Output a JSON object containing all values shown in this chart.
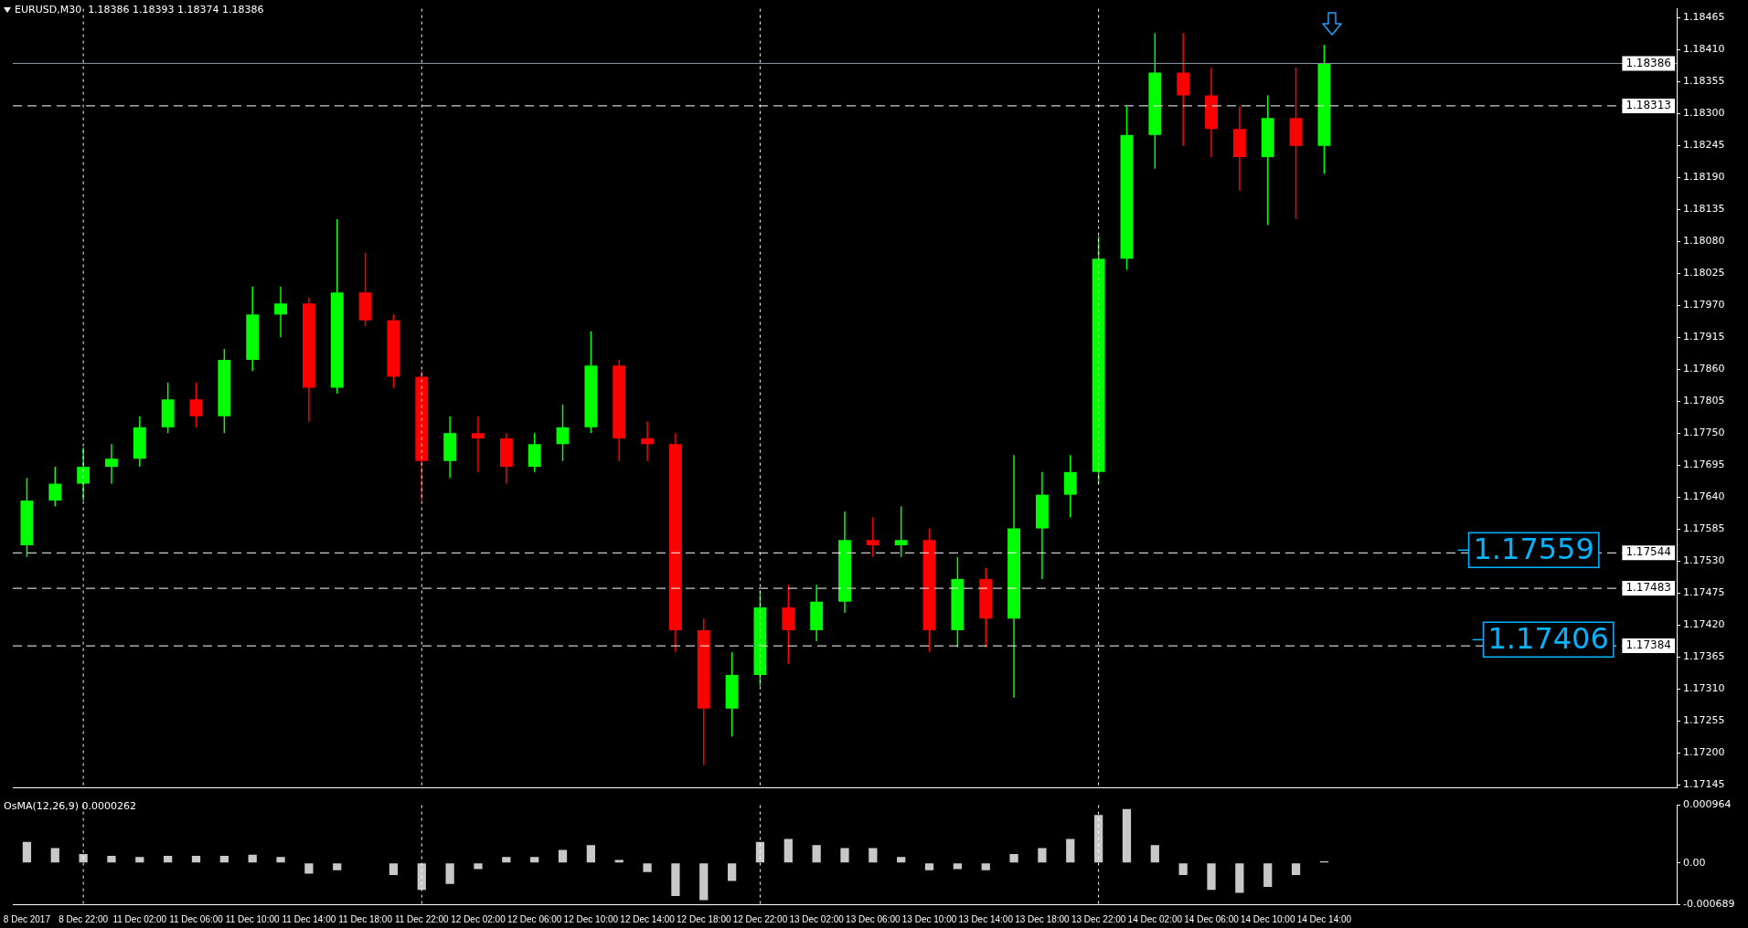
{
  "chart_data": [
    {
      "type": "candlestick",
      "title": "EURUSD,M30  1.18386 1.18393 1.18374 1.18386",
      "tick_labels": "y",
      "categories": [
        "8 Dec 2017",
        null,
        "8 Dec 22:00",
        null,
        "11 Dec 02:00",
        null,
        "11 Dec 06:00",
        null,
        "11 Dec 10:00",
        null,
        "11 Dec 14:00",
        null,
        "11 Dec 18:00",
        null,
        "11 Dec 22:00",
        null,
        "12 Dec 02:00",
        null,
        "12 Dec 06:00",
        null,
        "12 Dec 10:00",
        null,
        "12 Dec 14:00",
        null,
        "12 Dec 18:00",
        null,
        "12 Dec 22:00",
        null,
        "13 Dec 02:00",
        null,
        "13 Dec 06:00",
        null,
        "13 Dec 10:00",
        null,
        "13 Dec 14:00",
        null,
        "13 Dec 18:00",
        null,
        "13 Dec 22:00",
        null,
        "14 Dec 02:00",
        null,
        "14 Dec 06:00",
        null,
        "14 Dec 10:00",
        null,
        "14 Dec 14:00",
        null,
        null,
        null,
        null,
        null,
        null,
        null,
        null,
        null,
        null,
        null,
        null
      ],
      "ohlc": [
        [
          1.17557,
          1.17673,
          1.17537,
          1.17634
        ],
        [
          1.17634,
          1.17692,
          1.17624,
          1.17663
        ],
        [
          1.17663,
          1.17725,
          1.17634,
          1.17692
        ],
        [
          1.17692,
          1.17731,
          1.17663,
          1.17706
        ],
        [
          1.17706,
          1.17779,
          1.17692,
          1.1776
        ],
        [
          1.1776,
          1.17837,
          1.1775,
          1.17808
        ],
        [
          1.17808,
          1.17837,
          1.1776,
          1.17779
        ],
        [
          1.17779,
          1.17895,
          1.1775,
          1.17876
        ],
        [
          1.17876,
          1.18002,
          1.17857,
          1.17954
        ],
        [
          1.17954,
          1.18002,
          1.17915,
          1.17973
        ],
        [
          1.17973,
          1.17983,
          1.1777,
          1.17828
        ],
        [
          1.17828,
          1.18118,
          1.17818,
          1.17992
        ],
        [
          1.17992,
          1.1806,
          1.17934,
          1.17944
        ],
        [
          1.17944,
          1.17954,
          1.17828,
          1.17847
        ],
        [
          1.17847,
          1.17857,
          1.17634,
          1.17702
        ],
        [
          1.17702,
          1.17779,
          1.17673,
          1.1775
        ],
        [
          1.1775,
          1.17779,
          1.17683,
          1.17741
        ],
        [
          1.17741,
          1.1775,
          1.17663,
          1.17692
        ],
        [
          1.17692,
          1.1775,
          1.17683,
          1.17731
        ],
        [
          1.17731,
          1.17799,
          1.17702,
          1.1776
        ],
        [
          1.1776,
          1.17925,
          1.1775,
          1.17866
        ],
        [
          1.17866,
          1.17876,
          1.17702,
          1.17741
        ],
        [
          1.17741,
          1.1777,
          1.17702,
          1.17731
        ],
        [
          1.17731,
          1.1775,
          1.17373,
          1.17411
        ],
        [
          1.17411,
          1.17431,
          1.17179,
          1.17276
        ],
        [
          1.17276,
          1.17373,
          1.17228,
          1.17334
        ],
        [
          1.17334,
          1.17479,
          1.17315,
          1.1745
        ],
        [
          1.1745,
          1.17489,
          1.17353,
          1.17411
        ],
        [
          1.17411,
          1.17489,
          1.17392,
          1.1746
        ],
        [
          1.1746,
          1.17615,
          1.17441,
          1.17566
        ],
        [
          1.17566,
          1.17605,
          1.17537,
          1.17557
        ],
        [
          1.17557,
          1.17624,
          1.17537,
          1.17566
        ],
        [
          1.17566,
          1.17586,
          1.17373,
          1.17411
        ],
        [
          1.17411,
          1.17537,
          1.17382,
          1.17499
        ],
        [
          1.17499,
          1.17518,
          1.17382,
          1.17431
        ],
        [
          1.17431,
          1.17712,
          1.17295,
          1.17586
        ],
        [
          1.17586,
          1.17683,
          1.17499,
          1.17644
        ],
        [
          1.17644,
          1.17712,
          1.17605,
          1.17683
        ],
        [
          1.17683,
          1.18089,
          1.17663,
          1.1805
        ],
        [
          1.1805,
          1.18312,
          1.18031,
          1.18263
        ],
        [
          1.18263,
          1.18438,
          1.18205,
          1.1837
        ],
        [
          1.1837,
          1.18438,
          1.18244,
          1.18331
        ],
        [
          1.18331,
          1.18379,
          1.18225,
          1.18273
        ],
        [
          1.18273,
          1.18312,
          1.18167,
          1.18225
        ],
        [
          1.18225,
          1.18331,
          1.18108,
          1.18292
        ],
        [
          1.18292,
          1.18379,
          1.18118,
          1.18244
        ],
        [
          1.18244,
          1.18418,
          1.18196,
          1.18386
        ],
        null,
        null,
        null,
        null,
        null,
        null,
        null,
        null,
        null,
        null,
        null,
        null
      ],
      "colors": [
        "#00ff00",
        "#00ff00",
        "#00ff00",
        "#00ff00",
        "#00ff00",
        "#00ff00",
        "#ff0000",
        "#00ff00",
        "#00ff00",
        "#00ff00",
        "#ff0000",
        "#00ff00",
        "#ff0000",
        "#ff0000",
        "#ff0000",
        "#00ff00",
        "#ff0000",
        "#ff0000",
        "#00ff00",
        "#00ff00",
        "#00ff00",
        "#ff0000",
        "#ff0000",
        "#ff0000",
        "#ff0000",
        "#00ff00",
        "#00ff00",
        "#ff0000",
        "#00ff00",
        "#00ff00",
        "#ff0000",
        "#00ff00",
        "#ff0000",
        "#00ff00",
        "#ff0000",
        "#00ff00",
        "#00ff00",
        "#00ff00",
        "#00ff00",
        "#00ff00",
        "#00ff00",
        "#ff0000",
        "#ff0000",
        "#ff0000",
        "#00ff00",
        "#ff0000",
        "#00ff00",
        null,
        null,
        null,
        null,
        null,
        null,
        null,
        null,
        null,
        null,
        null,
        null
      ],
      "ylim": [
        1.1714,
        1.1848
      ],
      "yticks": [
        {
          "value": 1.17145,
          "label": "1.17145"
        },
        {
          "value": 1.172,
          "label": "1.17200"
        },
        {
          "value": 1.17255,
          "label": "1.17255"
        },
        {
          "value": 1.1731,
          "label": "1.17310"
        },
        {
          "value": 1.17365,
          "label": "1.17365"
        },
        {
          "value": 1.1742,
          "label": "1.17420"
        },
        {
          "value": 1.17475,
          "label": "1.17475"
        },
        {
          "value": 1.1753,
          "label": "1.17530"
        },
        {
          "value": 1.17585,
          "label": "1.17585"
        },
        {
          "value": 1.1764,
          "label": "1.17640"
        },
        {
          "value": 1.17695,
          "label": "1.17695"
        },
        {
          "value": 1.1775,
          "label": "1.17750"
        },
        {
          "value": 1.17805,
          "label": "1.17805"
        },
        {
          "value": 1.1786,
          "label": "1.17860"
        },
        {
          "value": 1.17915,
          "label": "1.17915"
        },
        {
          "value": 1.1797,
          "label": "1.17970"
        },
        {
          "value": 1.18025,
          "label": "1.18025"
        },
        {
          "value": 1.1808,
          "label": "1.18080"
        },
        {
          "value": 1.18135,
          "label": "1.18135"
        },
        {
          "value": 1.1819,
          "label": "1.18190"
        },
        {
          "value": 1.18245,
          "label": "1.18245"
        },
        {
          "value": 1.183,
          "label": "1.18300"
        },
        {
          "value": 1.18355,
          "label": "1.18355"
        },
        {
          "value": 1.1841,
          "label": "1.18410"
        },
        {
          "value": 1.18465,
          "label": "1.18465"
        }
      ],
      "ref_lines": [
        {
          "axis": "y",
          "value": 1.18386,
          "label": "1.18386",
          "color": "#8c9aa8",
          "line_style": "solid"
        },
        {
          "axis": "y",
          "value": 1.18313,
          "label": "1.18313",
          "color": "#ffffff",
          "line_style": "dashed"
        },
        {
          "axis": "y",
          "value": 1.17544,
          "label": "1.17544",
          "color": "#ffffff",
          "line_style": "dashed"
        },
        {
          "axis": "y",
          "value": 1.17483,
          "label": "1.17483",
          "color": "#ffffff",
          "line_style": "dashed"
        },
        {
          "axis": "y",
          "value": 1.17384,
          "label": "1.17384",
          "color": "#ffffff",
          "line_style": "dashed"
        },
        {
          "axis": "x",
          "value": "8 Dec 22:00",
          "color": "#ffffff",
          "line_style": "dotted"
        },
        {
          "axis": "x",
          "value": "11 Dec 22:00",
          "color": "#ffffff",
          "line_style": "dotted"
        },
        {
          "axis": "x",
          "value": "12 Dec 22:00",
          "color": "#ffffff",
          "line_style": "dotted"
        },
        {
          "axis": "x",
          "value": "13 Dec 22:00",
          "color": "#ffffff",
          "line_style": "dotted"
        }
      ],
      "annotations": [
        "1.17559",
        "1.17406"
      ]
    },
    {
      "type": "bar",
      "title": "OsMA(12,26,9) 0.0000262",
      "color": "#c8c8c8",
      "categories": [
        "8 Dec 2017",
        null,
        "8 Dec 22:00",
        null,
        "11 Dec 02:00",
        null,
        "11 Dec 06:00",
        null,
        "11 Dec 10:00",
        null,
        "11 Dec 14:00",
        null,
        "11 Dec 18:00",
        null,
        "11 Dec 22:00",
        null,
        "12 Dec 02:00",
        null,
        "12 Dec 06:00",
        null,
        "12 Dec 10:00",
        null,
        "12 Dec 14:00",
        null,
        "12 Dec 18:00",
        null,
        "12 Dec 22:00",
        null,
        "13 Dec 02:00",
        null,
        "13 Dec 06:00",
        null,
        "13 Dec 10:00",
        null,
        "13 Dec 14:00",
        null,
        "13 Dec 18:00",
        null,
        "13 Dec 22:00",
        null,
        "14 Dec 02:00",
        null,
        "14 Dec 06:00",
        null,
        "14 Dec 10:00",
        null,
        "14 Dec 14:00",
        null,
        null,
        null,
        null,
        null,
        null,
        null,
        null,
        null,
        null,
        null,
        null
      ],
      "values": [
        0.00035,
        0.00025,
        0.00015,
        0.00012,
        0.0001,
        0.00012,
        0.00012,
        0.00012,
        0.00014,
        0.0001,
        -0.00018,
        -0.00012,
        0,
        -0.0002,
        -0.00045,
        -0.00035,
        -0.0001,
        0.0001,
        0.0001,
        0.00022,
        0.0003,
        5e-05,
        -0.00015,
        -0.00055,
        -0.00062,
        -0.0003,
        0.00035,
        0.0004,
        0.0003,
        0.00025,
        0.00025,
        0.0001,
        -0.00012,
        -0.0001,
        -0.00012,
        0.00015,
        0.00025,
        0.0004,
        0.0008,
        0.0009,
        0.0003,
        -0.0002,
        -0.00045,
        -0.0005,
        -0.0004,
        -0.0002,
        2.62e-05,
        null,
        null,
        null,
        null,
        null,
        null,
        null,
        null,
        null,
        null,
        null,
        null
      ],
      "ylim": [
        -0.000689,
        0.000964
      ],
      "yticks": [
        {
          "value": 0.000964,
          "label": "0.000964"
        },
        {
          "value": 0,
          "label": "0.00"
        },
        {
          "value": -0.000689,
          "label": "-0.000689"
        }
      ],
      "ref_lines": [
        {
          "axis": "x",
          "value": "8 Dec 22:00",
          "color": "#ffffff",
          "line_style": "dotted"
        },
        {
          "axis": "x",
          "value": "11 Dec 22:00",
          "color": "#ffffff",
          "line_style": "dotted"
        },
        {
          "axis": "x",
          "value": "12 Dec 22:00",
          "color": "#ffffff",
          "line_style": "dotted"
        },
        {
          "axis": "x",
          "value": "13 Dec 22:00",
          "color": "#ffffff",
          "line_style": "dotted"
        }
      ]
    }
  ]
}
